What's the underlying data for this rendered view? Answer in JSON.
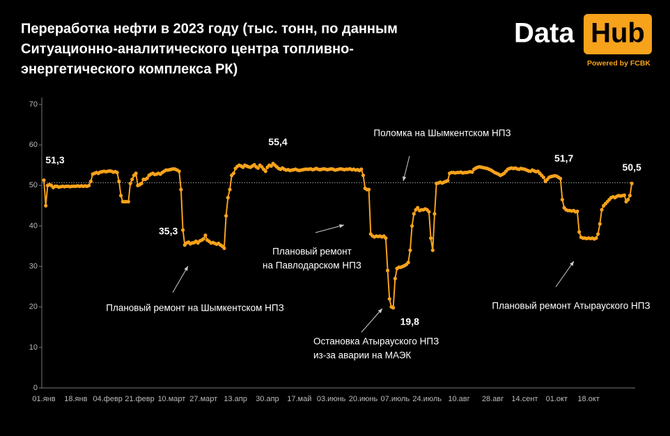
{
  "chart_data": {
    "type": "line",
    "title": [
      "Переработка нефти в 2023 году (тыс. тонн, по данным",
      "Ситуационно-аналитического центра топливно-",
      "энергетического комплекса РК)"
    ],
    "logo": {
      "word1": "Data",
      "word2": "Hub",
      "tagline": "Powered by FCBK"
    },
    "ylim": [
      0,
      70
    ],
    "yticks": [
      0,
      10,
      20,
      30,
      40,
      50,
      60,
      70
    ],
    "reference_line": 50.7,
    "categories": [
      "01.янв",
      null,
      null,
      null,
      null,
      null,
      null,
      null,
      null,
      null,
      null,
      null,
      null,
      null,
      null,
      null,
      null,
      "18.янв",
      null,
      null,
      null,
      null,
      null,
      null,
      null,
      null,
      null,
      null,
      null,
      null,
      null,
      null,
      null,
      null,
      "04.февр",
      null,
      null,
      null,
      null,
      null,
      null,
      null,
      null,
      null,
      null,
      null,
      null,
      null,
      null,
      null,
      null,
      "21.февр",
      null,
      null,
      null,
      null,
      null,
      null,
      null,
      null,
      null,
      null,
      null,
      null,
      null,
      null,
      null,
      null,
      "10.март",
      null,
      null,
      null,
      null,
      null,
      null,
      null,
      null,
      null,
      null,
      null,
      null,
      null,
      null,
      null,
      null,
      "27.март",
      null,
      null,
      null,
      null,
      null,
      null,
      null,
      null,
      null,
      null,
      null,
      null,
      null,
      null,
      null,
      null,
      "13.апр",
      null,
      null,
      null,
      null,
      null,
      null,
      null,
      null,
      null,
      null,
      null,
      null,
      null,
      null,
      null,
      null,
      "30.апр",
      null,
      null,
      null,
      null,
      null,
      null,
      null,
      null,
      null,
      null,
      null,
      null,
      null,
      null,
      null,
      null,
      "17.май",
      null,
      null,
      null,
      null,
      null,
      null,
      null,
      null,
      null,
      null,
      null,
      null,
      null,
      null,
      null,
      null,
      "03.июнь",
      null,
      null,
      null,
      null,
      null,
      null,
      null,
      null,
      null,
      null,
      null,
      null,
      null,
      null,
      null,
      null,
      "20.июнь",
      null,
      null,
      null,
      null,
      null,
      null,
      null,
      null,
      null,
      null,
      null,
      null,
      null,
      null,
      null,
      null,
      "07.июль",
      null,
      null,
      null,
      null,
      null,
      null,
      null,
      null,
      null,
      null,
      null,
      null,
      null,
      null,
      null,
      null,
      "24.июль",
      null,
      null,
      null,
      null,
      null,
      null,
      null,
      null,
      null,
      null,
      null,
      null,
      null,
      null,
      null,
      null,
      "10.авг",
      null,
      null,
      null,
      null,
      null,
      null,
      null,
      null,
      null,
      null,
      null,
      null,
      null,
      null,
      null,
      null,
      null,
      "28.авг",
      null,
      null,
      null,
      null,
      null,
      null,
      null,
      null,
      null,
      null,
      null,
      null,
      null,
      null,
      null,
      null,
      "14.сент",
      null,
      null,
      null,
      null,
      null,
      null,
      null,
      null,
      null,
      null,
      null,
      null,
      null,
      null,
      null,
      null,
      "01.окт",
      null,
      null,
      null,
      null,
      null,
      null,
      null,
      null,
      null,
      null,
      null,
      null,
      null,
      null,
      null,
      null,
      "18.окт",
      null,
      null,
      null,
      null,
      null,
      null,
      null,
      null,
      null,
      null,
      null,
      null,
      null,
      null,
      null,
      null,
      null,
      null,
      null,
      null,
      null,
      null,
      null
    ],
    "series": [
      {
        "color": "#f7a21b",
        "values": [
          51.3,
          45,
          50,
          50.2,
          50,
          49.5,
          49.8,
          49.8,
          49.6,
          49.7,
          49.8,
          49.7,
          49.8,
          49.8,
          49.7,
          49.8,
          49.8,
          49.8,
          49.9,
          49.8,
          49.9,
          49.8,
          49.9,
          49.8,
          50,
          51,
          52.8,
          53,
          53.2,
          53,
          53.3,
          53.4,
          53.5,
          53.4,
          53.5,
          53.6,
          53.5,
          53.3,
          53.4,
          53.2,
          51,
          47.5,
          46,
          46,
          46,
          46,
          50.5,
          51.5,
          52.5,
          53,
          50,
          50.2,
          50.5,
          51.5,
          51.5,
          51.8,
          52.5,
          52.8,
          53,
          52.7,
          52.8,
          53,
          52.8,
          53.2,
          53.5,
          53.8,
          53.8,
          53.9,
          54,
          54.1,
          54,
          53.8,
          53.5,
          49,
          39,
          35.3,
          35.8,
          36,
          35.6,
          35.8,
          35.9,
          36.2,
          35.8,
          36.3,
          36.5,
          36.8,
          37.7,
          36.5,
          36.2,
          35.8,
          35.9,
          35.7,
          35.5,
          35.7,
          35.3,
          35,
          34.5,
          42.5,
          47,
          49,
          52.5,
          53,
          54.2,
          54.7,
          55,
          54.8,
          54.5,
          55,
          54.8,
          54.6,
          54.5,
          54.8,
          55.1,
          54.6,
          54.3,
          55,
          54.6,
          54,
          53.5,
          54.5,
          55,
          54.8,
          55.4,
          55,
          54.6,
          54.2,
          54,
          54.3,
          54,
          53.8,
          53.9,
          53.7,
          53.8,
          53.9,
          54,
          53.8,
          53.7,
          53.8,
          53.9,
          54,
          54,
          54,
          54.1,
          53.9,
          54,
          54.2,
          54,
          53.9,
          54,
          54.1,
          54,
          53.9,
          54,
          54.1,
          54,
          53.8,
          53.9,
          54,
          54.1,
          54,
          53.9,
          54,
          54,
          54.1,
          53.9,
          54,
          53.8,
          53.9,
          53.7,
          54,
          52.5,
          49.3,
          49,
          49,
          38,
          37.5,
          37.3,
          37.5,
          37.4,
          37.5,
          37.3,
          37.5,
          37,
          29,
          22,
          20,
          19.8,
          27,
          29.5,
          29.8,
          29.8,
          30,
          30.2,
          30.5,
          31,
          34,
          40,
          43,
          44,
          44.5,
          43.8,
          44,
          44,
          44.2,
          44,
          43.5,
          37,
          34,
          43,
          50.5,
          50.6,
          50.8,
          50.6,
          50.8,
          51,
          51.2,
          53,
          53.2,
          53.2,
          53.1,
          53.2,
          53.2,
          53.3,
          53.1,
          53.2,
          53.2,
          53.3,
          53.4,
          53.3,
          54,
          54.3,
          54.5,
          54.6,
          54.5,
          54.4,
          54.3,
          54.2,
          54,
          53.8,
          53.5,
          53.2,
          53,
          52.8,
          52.5,
          52.7,
          53,
          53.5,
          54,
          54.2,
          54.3,
          54.2,
          54.3,
          54.1,
          54,
          54.2,
          54.1,
          54,
          53.8,
          53.6,
          53.5,
          53.8,
          53.6,
          53.4,
          53.5,
          53,
          52.5,
          52,
          51,
          51.5,
          52,
          52.2,
          52.3,
          52.4,
          52.3,
          52,
          51.7,
          46.5,
          44.5,
          44,
          43.8,
          43.8,
          43.7,
          43.8,
          43.5,
          43.6,
          38.5,
          37.2,
          37,
          37,
          36.9,
          37,
          36.9,
          37,
          36.8,
          37,
          38,
          40.5,
          44,
          45,
          45.5,
          46,
          46.5,
          47,
          47.2,
          47,
          47.3,
          47.5,
          47.4,
          47.5,
          47.6,
          46,
          46.5,
          47.5,
          50.5
        ],
        "value_labels": [
          "51,3",
          null,
          null,
          null,
          null,
          null,
          null,
          null,
          null,
          null,
          null,
          null,
          null,
          null,
          null,
          null,
          null,
          null,
          null,
          null,
          null,
          null,
          null,
          null,
          null,
          null,
          null,
          null,
          null,
          null,
          null,
          null,
          null,
          null,
          null,
          null,
          null,
          null,
          null,
          null,
          null,
          null,
          null,
          null,
          null,
          null,
          null,
          null,
          null,
          null,
          null,
          null,
          null,
          null,
          null,
          null,
          null,
          null,
          null,
          null,
          null,
          null,
          null,
          null,
          null,
          null,
          null,
          null,
          null,
          null,
          null,
          null,
          null,
          null,
          null,
          "35,3",
          null,
          null,
          null,
          null,
          null,
          null,
          null,
          null,
          null,
          null,
          null,
          null,
          null,
          null,
          null,
          null,
          null,
          null,
          null,
          null,
          null,
          null,
          null,
          null,
          null,
          null,
          null,
          null,
          null,
          null,
          null,
          null,
          null,
          null,
          null,
          null,
          null,
          null,
          null,
          null,
          null,
          null,
          null,
          null,
          null,
          null,
          "55,4",
          null,
          null,
          null,
          null,
          null,
          null,
          null,
          null,
          null,
          null,
          null,
          null,
          null,
          null,
          null,
          null,
          null,
          null,
          null,
          null,
          null,
          null,
          null,
          null,
          null,
          null,
          null,
          null,
          null,
          null,
          null,
          null,
          null,
          null,
          null,
          null,
          null,
          null,
          null,
          null,
          null,
          null,
          null,
          null,
          null,
          null,
          null,
          null,
          null,
          null,
          null,
          null,
          null,
          null,
          null,
          null,
          null,
          null,
          null,
          null,
          null,
          null,
          null,
          "19,8",
          null,
          null,
          null,
          null,
          null,
          null,
          null,
          null,
          null,
          null,
          null,
          null,
          null,
          null,
          null,
          null,
          null,
          null,
          null,
          null,
          null,
          null,
          null,
          null,
          null,
          null,
          null,
          null,
          null,
          null,
          null,
          null,
          null,
          null,
          null,
          null,
          null,
          null,
          null,
          null,
          null,
          null,
          null,
          null,
          null,
          null,
          null,
          null,
          null,
          null,
          null,
          null,
          null,
          null,
          null,
          null,
          null,
          null,
          null,
          null,
          null,
          null,
          null,
          null,
          null,
          null,
          null,
          null,
          null,
          null,
          null,
          null,
          null,
          null,
          null,
          null,
          null,
          null,
          null,
          null,
          null,
          null,
          null,
          null,
          null,
          null,
          null,
          null,
          "51,7",
          null,
          null,
          null,
          null,
          null,
          null,
          null,
          null,
          null,
          null,
          null,
          null,
          null,
          null,
          null,
          null,
          null,
          null,
          null,
          null,
          null,
          null,
          null,
          null,
          null,
          null,
          null,
          null,
          null,
          null,
          null,
          null,
          null,
          null,
          null,
          null,
          null,
          "50,5"
        ]
      }
    ],
    "annotations": [
      [
        "Поломка на Шымкентском НПЗ"
      ],
      [
        "Плановый ремонт",
        "на Павлодарском НПЗ"
      ],
      [
        "Плановый ремонт на Шымкентском НПЗ"
      ],
      [
        "Остановка Атырауского НПЗ",
        "из-за аварии на МАЭК"
      ],
      [
        "Плановый ремонт Атырауского НПЗ"
      ]
    ]
  }
}
